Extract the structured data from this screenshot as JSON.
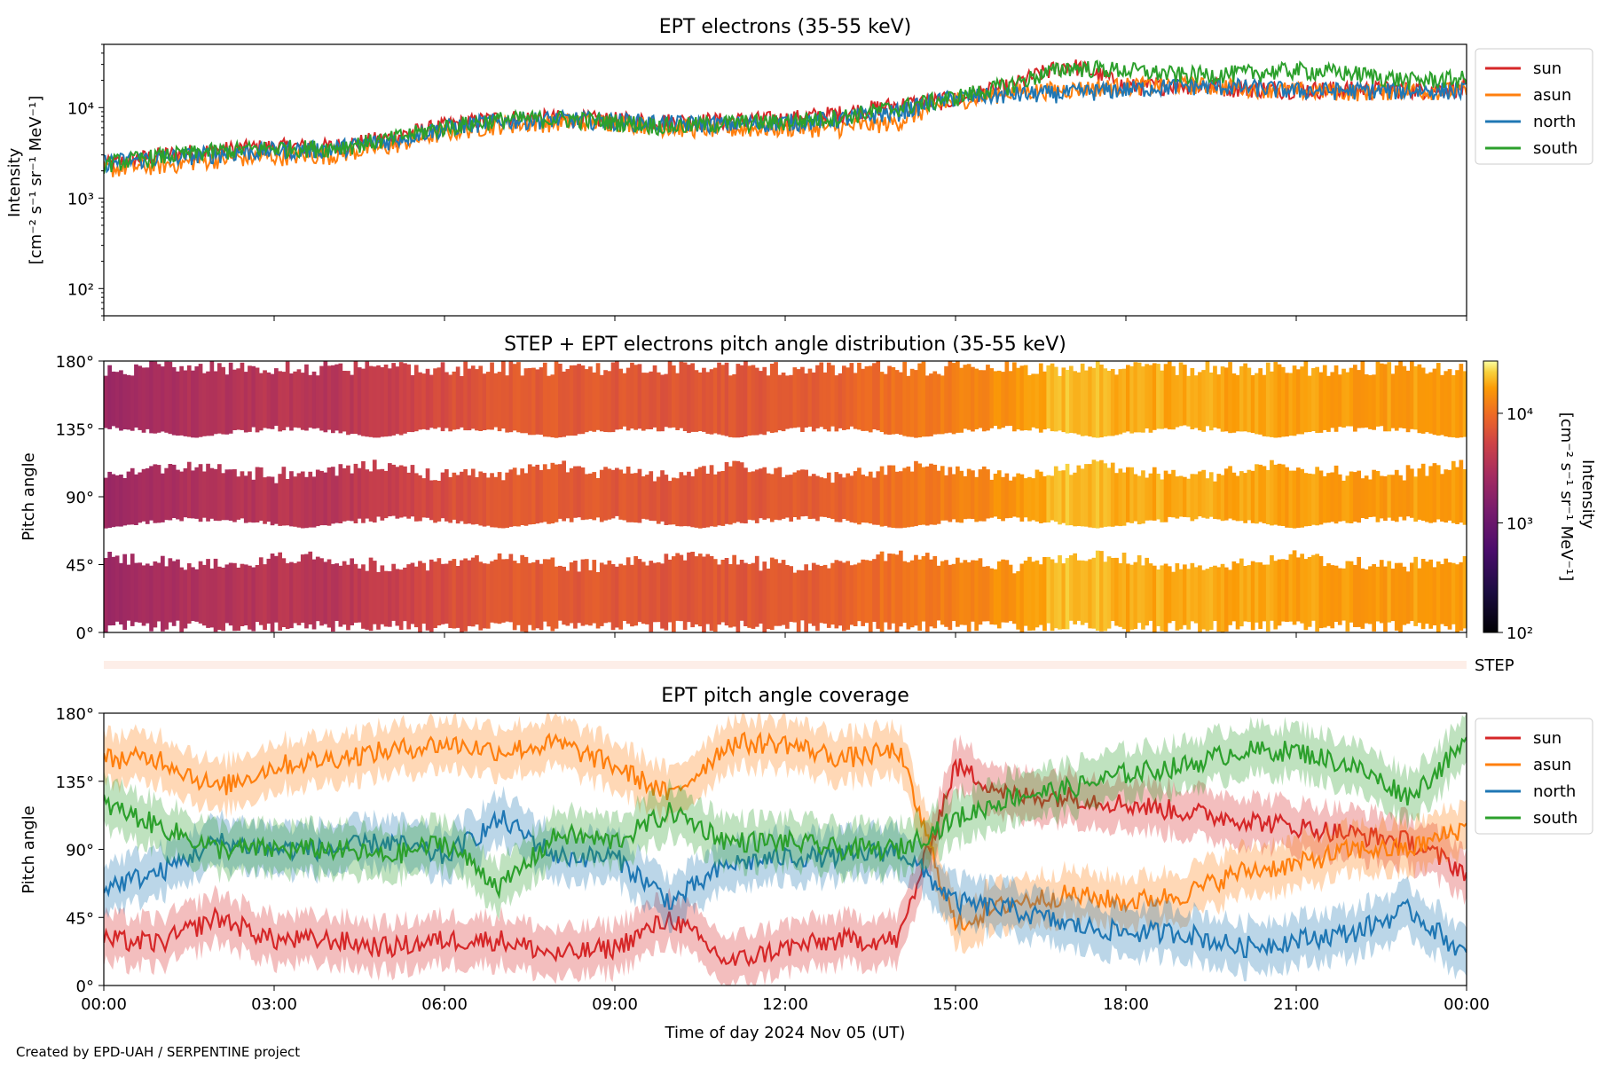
{
  "footer": "Created by EPD-UAH / SERPENTINE project",
  "colors": {
    "sun": "#d62728",
    "asun": "#ff7f0e",
    "north": "#1f77b4",
    "south": "#2ca02c"
  },
  "chart_data": [
    {
      "type": "line",
      "title": "EPT electrons (35-55 keV)",
      "ylabel_line1": "Intensity",
      "ylabel_line2": "[cm⁻² s⁻¹ sr⁻¹ MeV⁻¹]",
      "yscale": "log",
      "ylim": [
        50,
        50000
      ],
      "yticks": [
        "10²",
        "10³",
        "10⁴"
      ],
      "x_hours": [
        0,
        1,
        2,
        3,
        4,
        5,
        6,
        7,
        8,
        9,
        10,
        11,
        12,
        13,
        14,
        15,
        16,
        17,
        18,
        19,
        20,
        21,
        22,
        23,
        24
      ],
      "legend_position": "outside-right-top",
      "series": [
        {
          "name": "sun",
          "color": "#d62728",
          "values": [
            2300,
            3000,
            3400,
            3700,
            3700,
            4600,
            6300,
            7700,
            7700,
            7300,
            7100,
            7200,
            7500,
            8700,
            10800,
            12300,
            17500,
            30000,
            17000,
            18000,
            16500,
            16000,
            16000,
            16000,
            16500
          ]
        },
        {
          "name": "asun",
          "color": "#ff7f0e",
          "values": [
            2100,
            2300,
            2700,
            2900,
            3000,
            3700,
            5300,
            6500,
            6900,
            7000,
            6000,
            5800,
            6000,
            6000,
            7000,
            12000,
            15000,
            16000,
            17500,
            17800,
            17000,
            15500,
            15000,
            15500,
            15500
          ]
        },
        {
          "name": "north",
          "color": "#1f77b4",
          "values": [
            2500,
            2800,
            3100,
            3400,
            3500,
            4300,
            6000,
            7200,
            7500,
            7200,
            6700,
            6600,
            6900,
            7500,
            9000,
            13000,
            14000,
            14500,
            16000,
            17500,
            17000,
            15500,
            15500,
            15500,
            15500
          ]
        },
        {
          "name": "south",
          "color": "#2ca02c",
          "values": [
            2400,
            2900,
            3300,
            3600,
            3600,
            4400,
            6100,
            7400,
            7600,
            7000,
            6200,
            6800,
            7000,
            8000,
            10000,
            13000,
            18000,
            28000,
            26000,
            23000,
            24000,
            26000,
            24000,
            20000,
            21000
          ]
        }
      ]
    },
    {
      "type": "heatmap",
      "title": "STEP + EPT electrons pitch angle distribution (35-55 keV)",
      "ylabel": "Pitch angle",
      "ylim": [
        0,
        180
      ],
      "yticks": [
        "0°",
        "45°",
        "90°",
        "135°",
        "180°"
      ],
      "colorbar": {
        "label_line1": "Intensity",
        "label_line2": "[cm⁻² s⁻¹ sr⁻¹ MeV⁻¹]",
        "scale": "log",
        "range": [
          100,
          30000
        ],
        "ticks": [
          "10²",
          "10³",
          "10⁴"
        ]
      },
      "intensity_hourly": [
        2300,
        3000,
        3400,
        3700,
        3700,
        4600,
        6300,
        7700,
        7700,
        7300,
        7100,
        7200,
        7500,
        8700,
        10800,
        12300,
        16000,
        22000,
        19000,
        19000,
        18000,
        17000,
        17000,
        17000,
        17000
      ]
    },
    {
      "type": "line",
      "title": "EPT pitch angle coverage",
      "strip_label": "STEP",
      "ylabel": "Pitch angle",
      "xlabel": "Time of day 2024 Nov 05 (UT)",
      "ylim": [
        0,
        180
      ],
      "yticks": [
        "0°",
        "45°",
        "90°",
        "135°",
        "180°"
      ],
      "xticks": [
        "00:00",
        "03:00",
        "06:00",
        "09:00",
        "12:00",
        "15:00",
        "18:00",
        "21:00",
        "00:00"
      ],
      "x_hours": [
        0,
        1,
        2,
        3,
        4,
        5,
        6,
        7,
        8,
        9,
        10,
        11,
        12,
        13,
        14,
        15,
        16,
        17,
        18,
        19,
        20,
        21,
        22,
        23,
        24
      ],
      "legend_position": "outside-right-top",
      "series": [
        {
          "name": "sun",
          "color": "#d62728",
          "values": [
            30,
            28,
            45,
            30,
            30,
            25,
            30,
            30,
            20,
            25,
            45,
            15,
            25,
            30,
            30,
            145,
            125,
            125,
            120,
            115,
            110,
            105,
            100,
            95,
            75
          ]
        },
        {
          "name": "asun",
          "color": "#ff7f0e",
          "values": [
            150,
            150,
            130,
            145,
            150,
            155,
            160,
            155,
            160,
            145,
            125,
            160,
            160,
            150,
            155,
            40,
            55,
            60,
            55,
            60,
            75,
            80,
            90,
            90,
            105
          ]
        },
        {
          "name": "north",
          "color": "#1f77b4",
          "values": [
            65,
            75,
            95,
            90,
            90,
            95,
            85,
            110,
            85,
            85,
            55,
            80,
            85,
            85,
            90,
            55,
            50,
            40,
            35,
            35,
            25,
            30,
            35,
            50,
            20
          ]
        },
        {
          "name": "south",
          "color": "#2ca02c",
          "values": [
            120,
            105,
            90,
            90,
            90,
            85,
            95,
            65,
            100,
            95,
            115,
            95,
            95,
            90,
            90,
            110,
            125,
            130,
            140,
            145,
            155,
            155,
            145,
            125,
            160
          ]
        }
      ]
    }
  ]
}
